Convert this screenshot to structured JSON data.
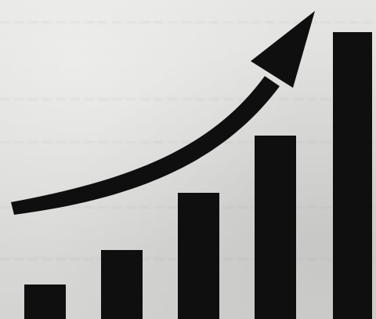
{
  "image": {
    "subject": "rising bar graph with upward curved arrow",
    "colors": {
      "ink": "#0f0f0f",
      "paper": "#d9d9d7"
    },
    "bar_levels": [
      0.12,
      0.24,
      0.44,
      0.64,
      1.0
    ]
  }
}
